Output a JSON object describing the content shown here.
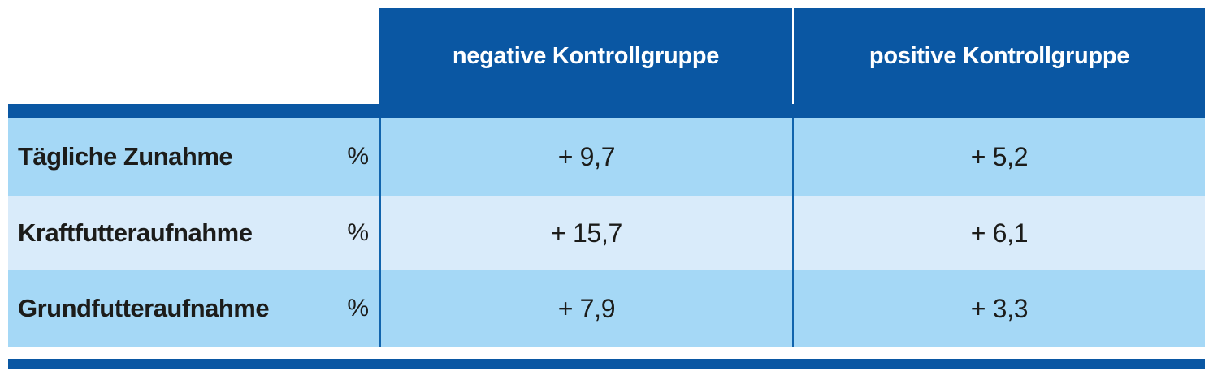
{
  "chart_data": {
    "type": "table",
    "columns": [
      "",
      "negative Kontrollgruppe",
      "positive Kontrollgruppe"
    ],
    "unit": "%",
    "rows": [
      {
        "label": "Tägliche Zunahme",
        "unit": "%",
        "values": [
          "+ 9,7",
          "+ 5,2"
        ]
      },
      {
        "label": "Kraftfutteraufnahme",
        "unit": "%",
        "values": [
          "+ 15,7",
          "+ 6,1"
        ]
      },
      {
        "label": "Grundfutteraufnahme",
        "unit": "%",
        "values": [
          "+ 7,9",
          "+ 3,3"
        ]
      }
    ],
    "numeric": {
      "categories": [
        "Tägliche Zunahme",
        "Kraftfutteraufnahme",
        "Grundfutteraufnahme"
      ],
      "series": [
        {
          "name": "negative Kontrollgruppe",
          "values": [
            9.7,
            15.7,
            7.9
          ]
        },
        {
          "name": "positive Kontrollgruppe",
          "values": [
            5.2,
            6.1,
            3.3
          ]
        }
      ],
      "unit": "%"
    },
    "layout": {
      "legend_position": "none",
      "grid": false
    }
  },
  "colors": {
    "header_blue": "#0a57a3",
    "accent_bar_blue": "#0a57a3",
    "row_light_blue": "#a5d8f6",
    "row_pale_blue": "#d9ebfa",
    "divider_blue": "#1164ad",
    "header_text": "#ffffff",
    "body_text": "#1c1c1a"
  }
}
